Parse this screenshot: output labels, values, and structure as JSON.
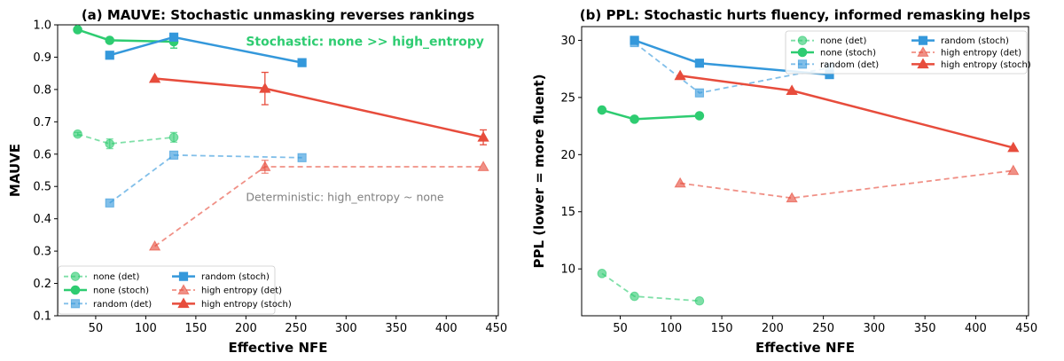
{
  "chart_data": [
    {
      "id": "mauve",
      "type": "line",
      "title": "(a) MAUVE: Stochastic unmasking reverses rankings",
      "xlabel": "Effective NFE",
      "ylabel": "MAUVE",
      "xlim": [
        12,
        452
      ],
      "ylim": [
        0.1,
        1.0
      ],
      "xticks": [
        50,
        100,
        150,
        200,
        250,
        300,
        350,
        400,
        450
      ],
      "yticks": [
        0.1,
        0.2,
        0.3,
        0.4,
        0.5,
        0.6,
        0.7,
        0.8,
        0.9,
        1.0
      ],
      "legend_position": "lower-left",
      "legend_columns": 2,
      "annotations": [
        {
          "text": "Stochastic: none >> high_entropy",
          "x": 200,
          "y": 0.935,
          "color": "#2ecc71",
          "bold": true
        },
        {
          "text": "Deterministic: high_entropy ~ none",
          "x": 200,
          "y": 0.455,
          "color": "#808080",
          "bold": false
        }
      ],
      "series": [
        {
          "name": "none (det)",
          "color": "#2ecc71",
          "marker": "circle",
          "dashed": true,
          "faded": true,
          "x": [
            32,
            64,
            128
          ],
          "y": [
            0.662,
            0.632,
            0.652
          ],
          "err": [
            0.005,
            0.015,
            0.015
          ]
        },
        {
          "name": "none (stoch)",
          "color": "#2ecc71",
          "marker": "circle",
          "dashed": false,
          "faded": false,
          "x": [
            32,
            64,
            128
          ],
          "y": [
            0.985,
            0.952,
            0.948
          ],
          "err": [
            0,
            0,
            0.02
          ]
        },
        {
          "name": "random (det)",
          "color": "#3498db",
          "marker": "square",
          "dashed": true,
          "faded": true,
          "x": [
            64,
            128,
            256
          ],
          "y": [
            0.449,
            0.597,
            0.589
          ],
          "err": [
            0,
            0,
            0
          ]
        },
        {
          "name": "random (stoch)",
          "color": "#3498db",
          "marker": "square",
          "dashed": false,
          "faded": false,
          "x": [
            64,
            128,
            256
          ],
          "y": [
            0.906,
            0.962,
            0.883
          ],
          "err": [
            0,
            0,
            0
          ]
        },
        {
          "name": "high entropy (det)",
          "color": "#e74c3c",
          "marker": "triangle",
          "dashed": true,
          "faded": true,
          "x": [
            109,
            219,
            437
          ],
          "y": [
            0.315,
            0.561,
            0.561
          ],
          "err": [
            0,
            0.02,
            0
          ]
        },
        {
          "name": "high entropy (stoch)",
          "color": "#e74c3c",
          "marker": "triangle",
          "dashed": false,
          "faded": false,
          "x": [
            109,
            219,
            437
          ],
          "y": [
            0.834,
            0.803,
            0.652
          ],
          "err": [
            0,
            0.05,
            0.023
          ]
        }
      ]
    },
    {
      "id": "ppl",
      "type": "line",
      "title": "(b) PPL: Stochastic hurts fluency, informed remasking helps",
      "xlabel": "Effective NFE",
      "ylabel": "PPL (lower = more fluent)",
      "xlim": [
        12,
        452
      ],
      "ylim": [
        5.9,
        31.2
      ],
      "xticks": [
        50,
        100,
        150,
        200,
        250,
        300,
        350,
        400,
        450
      ],
      "yticks": [
        10,
        15,
        20,
        25,
        30
      ],
      "legend_position": "top-right",
      "legend_columns": 2,
      "annotations": [],
      "series": [
        {
          "name": "none (det)",
          "color": "#2ecc71",
          "marker": "circle",
          "dashed": true,
          "faded": true,
          "x": [
            32,
            64,
            128
          ],
          "y": [
            9.6,
            7.6,
            7.2
          ],
          "err": [
            0,
            0,
            0
          ]
        },
        {
          "name": "none (stoch)",
          "color": "#2ecc71",
          "marker": "circle",
          "dashed": false,
          "faded": false,
          "x": [
            32,
            64,
            128
          ],
          "y": [
            23.9,
            23.1,
            23.4
          ],
          "err": [
            0,
            0,
            0
          ]
        },
        {
          "name": "random (det)",
          "color": "#3498db",
          "marker": "square",
          "dashed": true,
          "faded": true,
          "x": [
            64,
            128,
            256
          ],
          "y": [
            29.8,
            25.4,
            27.6
          ],
          "err": [
            0,
            0,
            0
          ]
        },
        {
          "name": "random (stoch)",
          "color": "#3498db",
          "marker": "square",
          "dashed": false,
          "faded": false,
          "x": [
            64,
            128,
            256
          ],
          "y": [
            30.0,
            28.0,
            27.0
          ],
          "err": [
            0,
            0,
            0
          ]
        },
        {
          "name": "high entropy (det)",
          "color": "#e74c3c",
          "marker": "triangle",
          "dashed": true,
          "faded": true,
          "x": [
            109,
            219,
            437
          ],
          "y": [
            17.5,
            16.2,
            18.6
          ],
          "err": [
            0,
            0,
            0
          ]
        },
        {
          "name": "high entropy (stoch)",
          "color": "#e74c3c",
          "marker": "triangle",
          "dashed": false,
          "faded": false,
          "x": [
            109,
            219,
            437
          ],
          "y": [
            26.9,
            25.6,
            20.6
          ],
          "err": [
            0,
            0,
            0
          ]
        }
      ]
    }
  ]
}
